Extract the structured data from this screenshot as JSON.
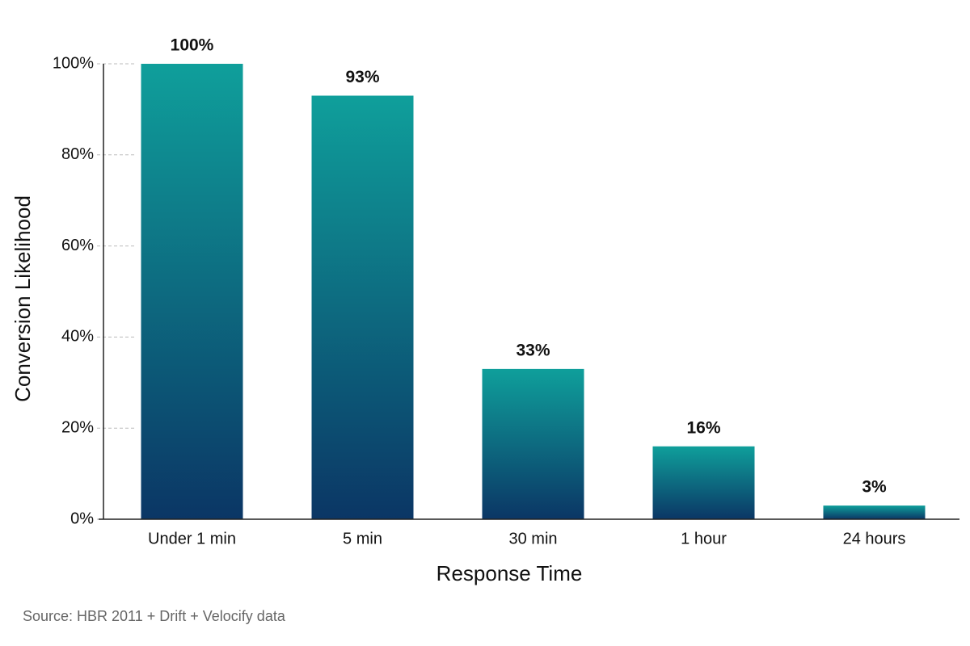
{
  "chart_data": {
    "type": "bar",
    "x_label": "Response Time",
    "y_label": "Conversion Likelihood",
    "source": "Source: HBR 2011 + Drift + Velocify data",
    "categories": [
      "Under 1 min",
      "5 min",
      "30 min",
      "1 hour",
      "24 hours"
    ],
    "values": [
      100,
      93,
      33,
      16,
      3
    ],
    "value_labels": [
      "100%",
      "93%",
      "33%",
      "16%",
      "3%"
    ],
    "gradient": [
      "#0f9f9b",
      "#0b3665"
    ],
    "ylim": [
      0,
      100
    ],
    "yticks": [
      {
        "value": 0,
        "label": "0%"
      },
      {
        "value": 20,
        "label": "20%"
      },
      {
        "value": 40,
        "label": "40%"
      },
      {
        "value": 60,
        "label": "60%"
      },
      {
        "value": 80,
        "label": "80%"
      },
      {
        "value": 100,
        "label": "100%"
      }
    ],
    "grid": true
  }
}
